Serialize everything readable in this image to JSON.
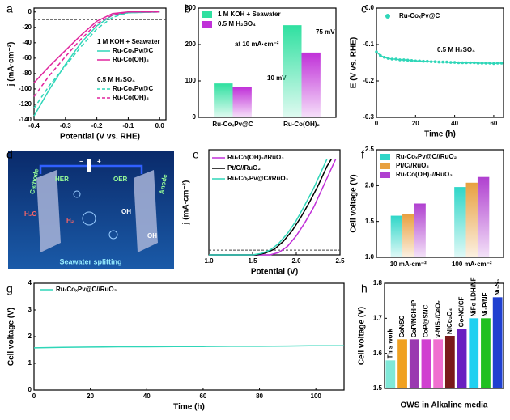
{
  "panel_labels": [
    "a",
    "b",
    "c",
    "d",
    "e",
    "f",
    "g",
    "h"
  ],
  "illustration": {
    "her": "HER",
    "oer": "OER",
    "cathode": "Cathode",
    "anode": "Anode",
    "minus": "−",
    "plus": "+",
    "ions": [
      "H₂O",
      "H₂",
      "OH",
      "OH"
    ],
    "caption": "Seawater splitting"
  },
  "chart_data": [
    {
      "type": "line",
      "xlabel": "Potential (V vs. RHE)",
      "ylabel": "j (mA·cm⁻²)",
      "xlim": [
        -0.4,
        0.02
      ],
      "ylim": [
        -140,
        5
      ],
      "xticks": [
        -0.4,
        -0.3,
        -0.2,
        -0.1,
        {
          "value": 0,
          "label": "0.0"
        }
      ],
      "yticks": [
        0,
        -20,
        -40,
        -60,
        -80,
        -100,
        -120,
        -140
      ],
      "hline": -10,
      "annotations": [
        "1 M KOH + Seawater",
        "0.5 M H₂SO₄"
      ],
      "x": [
        -0.4,
        -0.35,
        -0.3,
        -0.25,
        -0.2,
        -0.15,
        -0.1,
        0.0
      ],
      "series": [
        {
          "name": "Ru-CoₓPv@C",
          "color": "#2fd6b8",
          "dash": false,
          "values": [
            -135,
            -100,
            -68,
            -40,
            -18,
            -4,
            -1,
            0
          ]
        },
        {
          "name": "Ru-Co(OH)₂",
          "color": "#e0259e",
          "dash": false,
          "values": [
            -92,
            -70,
            -50,
            -30,
            -12,
            -2,
            0,
            0
          ]
        },
        {
          "name": "Ru-CoₓPv@C",
          "color": "#2fd6b8",
          "dash": true,
          "values": [
            -125,
            -95,
            -70,
            -45,
            -22,
            -7,
            -1,
            0
          ]
        },
        {
          "name": "Ru-Co(OH)₂",
          "color": "#e0259e",
          "dash": true,
          "values": [
            -110,
            -82,
            -58,
            -35,
            -15,
            -4,
            0,
            0
          ]
        }
      ]
    },
    {
      "type": "bar",
      "ylim": [
        0,
        300
      ],
      "yticks": [
        0,
        100,
        200,
        300
      ],
      "annotations": [
        "at 10 mA·cm⁻²",
        "10 mV",
        "75 mV"
      ],
      "categories": [
        "Ru-CoₓPv@C",
        "Ru-Co(OH)₂"
      ],
      "series": [
        {
          "name": "1 M KOH + Seawater",
          "color": "#2fe0a0",
          "values": [
            93,
            253
          ]
        },
        {
          "name": "0.5 M H₂SO₄",
          "color": "#c030d8",
          "values": [
            83,
            178
          ]
        }
      ]
    },
    {
      "type": "line",
      "xlabel": "Time (h)",
      "ylabel": "E (V vs. RHE)",
      "xlim": [
        0,
        65
      ],
      "ylim": [
        -0.3,
        0
      ],
      "xticks": [
        0,
        20,
        40,
        60
      ],
      "yticks": [
        {
          "value": 0,
          "label": "0.0"
        },
        -0.1,
        -0.2,
        -0.3
      ],
      "annotations": [
        "0.5 M H₂SO₄"
      ],
      "x": [
        0,
        2,
        4,
        6,
        8,
        10,
        12,
        14,
        16,
        18,
        20,
        22,
        24,
        26,
        28,
        30,
        32,
        34,
        36,
        38,
        40,
        42,
        44,
        46,
        48,
        50,
        52,
        54,
        56,
        58,
        60,
        62,
        64
      ],
      "series": [
        {
          "name": "Ru-CoₓPv@C",
          "color": "#2fd6b8",
          "marker": true,
          "values": [
            -0.12,
            -0.13,
            -0.135,
            -0.138,
            -0.14,
            -0.14,
            -0.142,
            -0.142,
            -0.143,
            -0.144,
            -0.145,
            -0.145,
            -0.146,
            -0.146,
            -0.147,
            -0.147,
            -0.148,
            -0.148,
            -0.148,
            -0.149,
            -0.149,
            -0.15,
            -0.15,
            -0.15,
            -0.15,
            -0.15,
            -0.151,
            -0.151,
            -0.151,
            -0.151,
            -0.152,
            -0.151,
            -0.151
          ]
        }
      ]
    },
    {
      "type": "line",
      "xlabel": "Potential (V)",
      "ylabel": "j (mA·cm⁻²)",
      "xlim": [
        1.0,
        2.5
      ],
      "ylim": [
        0,
        220
      ],
      "xticks": [
        {
          "value": 1.0,
          "label": "1.0"
        },
        1.5,
        {
          "value": 2.0,
          "label": "2.0"
        },
        2.5
      ],
      "hline": 10,
      "series": [
        {
          "name": "Ru-Co(OH)₂//RuO₂",
          "color": "#c030d8",
          "x": [
            1.0,
            1.7,
            1.8,
            1.9,
            2.0,
            2.1,
            2.2,
            2.3,
            2.4,
            2.45
          ],
          "values": [
            0,
            0,
            5,
            18,
            40,
            68,
            100,
            140,
            180,
            200
          ]
        },
        {
          "name": "Pt/C//RuO₂",
          "color": "#000000",
          "x": [
            1.0,
            1.55,
            1.65,
            1.75,
            1.85,
            1.95,
            2.05,
            2.15,
            2.25,
            2.35,
            2.4
          ],
          "values": [
            0,
            0,
            4,
            12,
            28,
            50,
            78,
            110,
            145,
            185,
            200
          ]
        },
        {
          "name": "Ru-CoₓPv@C//RuO₂",
          "color": "#2fd6b8",
          "x": [
            1.0,
            1.5,
            1.6,
            1.7,
            1.8,
            1.9,
            2.0,
            2.1,
            2.2,
            2.3,
            2.35
          ],
          "values": [
            0,
            0,
            3,
            10,
            24,
            45,
            72,
            105,
            140,
            180,
            200
          ]
        }
      ]
    },
    {
      "type": "bar",
      "ylabel": "Cell voltage (V)",
      "ylim": [
        1.0,
        2.5
      ],
      "yticks": [
        {
          "value": 1.0,
          "label": "1.0"
        },
        1.5,
        {
          "value": 2.0,
          "label": "2.0"
        },
        2.5
      ],
      "categories": [
        "10 mA·cm⁻²",
        "100 mA·cm⁻²"
      ],
      "series": [
        {
          "name": "Ru-CoₓPv@C//RuO₂",
          "color": "#2fd6c8",
          "values": [
            1.58,
            1.98
          ]
        },
        {
          "name": "Pt/C//RuO₂",
          "color": "#e8a040",
          "values": [
            1.6,
            2.04
          ]
        },
        {
          "name": "Ru-Co(OH)₂//RuO₂",
          "color": "#b040d0",
          "values": [
            1.75,
            2.12
          ]
        }
      ]
    },
    {
      "type": "line",
      "xlabel": "Time (h)",
      "ylabel": "Cell voltage (V)",
      "xlim": [
        0,
        110
      ],
      "ylim": [
        0,
        4
      ],
      "xticks": [
        0,
        20,
        40,
        60,
        80,
        100
      ],
      "yticks": [
        0,
        1,
        2,
        3,
        4
      ],
      "x": [
        0,
        10,
        20,
        30,
        40,
        50,
        60,
        70,
        80,
        90,
        100,
        110
      ],
      "series": [
        {
          "name": "Ru-CoₓPv@C//RuO₂",
          "color": "#2fd6b8",
          "values": [
            1.58,
            1.6,
            1.61,
            1.62,
            1.62,
            1.63,
            1.63,
            1.64,
            1.64,
            1.65,
            1.66,
            1.66
          ]
        }
      ]
    },
    {
      "type": "bar",
      "xlabel": "OWS in Alkaline media",
      "ylabel": "Cell voltage (V)",
      "ylim": [
        1.5,
        1.8
      ],
      "yticks": [
        1.5,
        1.6,
        1.7,
        1.8
      ],
      "categories": [
        "This work",
        "CoNSC",
        "CoP/NCHHP",
        "CoP@SNC",
        "v-NiS₂/CeO₂",
        "NiCo₂O₄",
        "Co-NC/CF",
        "NiFe LDH/NF",
        "Ni₂P/NF",
        "Ni₃S₂"
      ],
      "colors": [
        "#7fe8d8",
        "#f0a020",
        "#9a3ab0",
        "#d040d0",
        "#f070d0",
        "#7a1a1a",
        "#6a20c0",
        "#20d0f0",
        "#20c020",
        "#2040d0"
      ],
      "values": [
        1.58,
        1.64,
        1.64,
        1.64,
        1.64,
        1.65,
        1.67,
        1.7,
        1.7,
        1.76
      ]
    }
  ]
}
